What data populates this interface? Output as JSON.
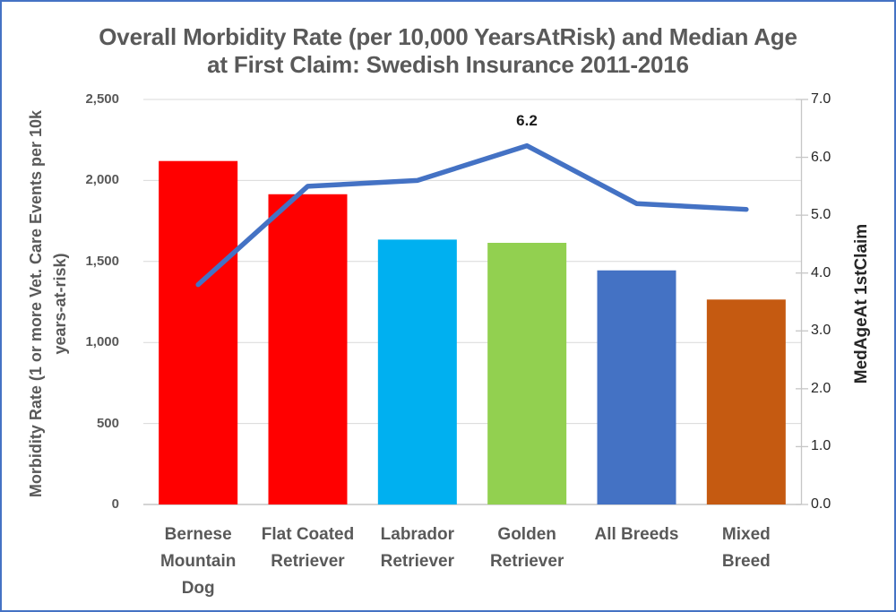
{
  "window": {
    "border_color": "#4472C4",
    "background_color": "#FFFFFF"
  },
  "colors": {
    "title_text": "#595959",
    "axis_text": "#595959",
    "right_axis_text": "#262626",
    "gridline": "#D9D9D9",
    "axis_line": "#C6C6C6",
    "line_series": "#4472C4"
  },
  "chart_data": {
    "type": "bar",
    "subtype": "combo-bar-line-dual-axis",
    "title_lines": [
      "Overall Morbidity Rate (per 10,000 YearsAtRisk) and Median Age",
      "at First Claim: Swedish Insurance 2011-2016"
    ],
    "categories": [
      "Bernese Mountain Dog",
      "Flat Coated Retriever",
      "Labrador Retriever",
      "Golden Retriever",
      "All Breeds",
      "Mixed Breed"
    ],
    "category_label_lines": [
      "Bernese\nMountain\nDog",
      "Flat Coated\nRetriever",
      "Labrador\nRetriever",
      "Golden\nRetriever",
      "All Breeds",
      "Mixed\nBreed"
    ],
    "series": [
      {
        "name": "Morbidity Rate (1 or more Vet. Care Events per 10k years-at-risk)",
        "type": "bar",
        "axis": "left",
        "values": [
          2120,
          1915,
          1635,
          1615,
          1445,
          1265
        ],
        "colors": [
          "#FF0000",
          "#FF0000",
          "#00B0F0",
          "#92D050",
          "#4472C4",
          "#C55A11"
        ]
      },
      {
        "name": "MedAgeAt 1stClaim",
        "type": "line",
        "axis": "right",
        "values": [
          3.8,
          5.5,
          5.6,
          6.2,
          5.2,
          5.1
        ],
        "color": "#4472C4",
        "data_labels": [
          null,
          null,
          null,
          "6.2",
          null,
          null
        ]
      }
    ],
    "left_axis": {
      "title_lines": [
        "Morbidity Rate (1 or more Vet. Care Events per 10k",
        "years-at-risk)"
      ],
      "min": 0,
      "max": 2500,
      "tick_values": [
        0,
        500,
        1000,
        1500,
        2000,
        2500
      ],
      "tick_labels": [
        "0",
        "500",
        "1,000",
        "1,500",
        "2,000",
        "2,500"
      ]
    },
    "right_axis": {
      "title": "MedAgeAt 1stClaim",
      "min": 0,
      "max": 7,
      "tick_values": [
        0,
        1,
        2,
        3,
        4,
        5,
        6,
        7
      ],
      "tick_labels": [
        "0.0",
        "1.0",
        "2.0",
        "3.0",
        "4.0",
        "5.0",
        "6.0",
        "7.0"
      ]
    },
    "grid": true,
    "legend": false
  }
}
